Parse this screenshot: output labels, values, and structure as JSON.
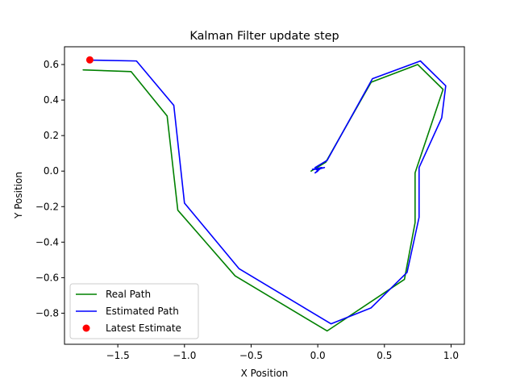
{
  "chart_data": {
    "type": "line",
    "title": "Kalman Filter update step",
    "xlabel": "X Position",
    "ylabel": "Y Position",
    "xlim": [
      -1.9,
      1.1
    ],
    "ylim": [
      -0.975,
      0.7
    ],
    "xticks": [
      -1.5,
      -1.0,
      -0.5,
      0.0,
      0.5,
      1.0
    ],
    "xtick_labels": [
      "−1.5",
      "−1.0",
      "−0.5",
      "0.0",
      "0.5",
      "1.0"
    ],
    "yticks": [
      -0.8,
      -0.6,
      -0.4,
      -0.2,
      0.0,
      0.2,
      0.4,
      0.6
    ],
    "ytick_labels": [
      "−0.8",
      "−0.6",
      "−0.4",
      "−0.2",
      "0.0",
      "0.2",
      "0.4",
      "0.6"
    ],
    "grid": false,
    "legend_position": "lower-left",
    "series": [
      {
        "name": "Real Path",
        "kind": "line",
        "color": "#008000",
        "points": [
          [
            -1.76,
            0.57
          ],
          [
            -1.4,
            0.56
          ],
          [
            -1.13,
            0.31
          ],
          [
            -1.05,
            -0.22
          ],
          [
            -0.62,
            -0.59
          ],
          [
            0.07,
            -0.9
          ],
          [
            0.65,
            -0.61
          ],
          [
            0.73,
            -0.29
          ],
          [
            0.73,
            -0.01
          ],
          [
            0.94,
            0.46
          ],
          [
            0.75,
            0.6
          ],
          [
            0.4,
            0.5
          ],
          [
            0.06,
            0.05
          ],
          [
            -0.05,
            0.0
          ]
        ]
      },
      {
        "name": "Estimated Path",
        "kind": "line",
        "color": "#0000ff",
        "points": [
          [
            0.05,
            0.02
          ],
          [
            0.0,
            0.01
          ],
          [
            -0.04,
            0.01
          ],
          [
            0.03,
            0.02
          ],
          [
            -0.02,
            -0.01
          ],
          [
            0.0,
            0.0
          ],
          [
            -0.02,
            0.02
          ],
          [
            0.07,
            0.06
          ],
          [
            0.41,
            0.52
          ],
          [
            0.77,
            0.62
          ],
          [
            0.96,
            0.48
          ],
          [
            0.93,
            0.3
          ],
          [
            0.76,
            0.02
          ],
          [
            0.76,
            -0.26
          ],
          [
            0.67,
            -0.57
          ],
          [
            0.4,
            -0.77
          ],
          [
            0.1,
            -0.86
          ],
          [
            -0.59,
            -0.55
          ],
          [
            -1.0,
            -0.18
          ],
          [
            -1.08,
            0.37
          ],
          [
            -1.36,
            0.62
          ],
          [
            -1.71,
            0.625
          ]
        ]
      },
      {
        "name": "Latest Estimate",
        "kind": "scatter",
        "color": "#ff0000",
        "points": [
          [
            -1.71,
            0.626
          ]
        ]
      }
    ]
  }
}
